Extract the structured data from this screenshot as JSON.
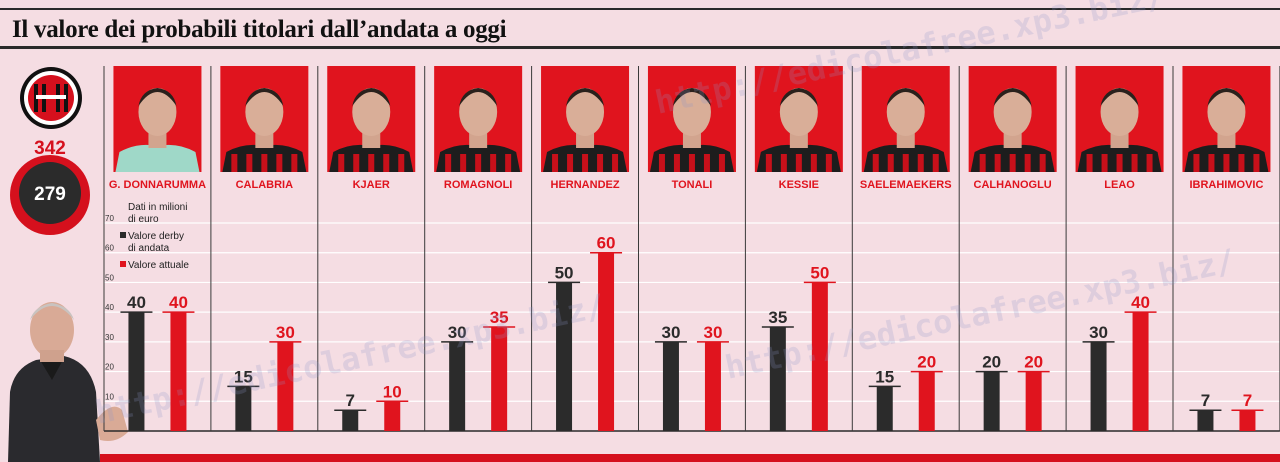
{
  "title": "Il valore dei probabili titolari dall’andata a oggi",
  "team": {
    "logo_icon": "ac-milan-crest-icon",
    "total_now": "342",
    "total_derby": "279"
  },
  "legend": {
    "unit_note": "Dati in milioni di euro",
    "derby_label": "Valore derby di andata",
    "current_label": "Valore attuale"
  },
  "colors": {
    "derby": "#2b2b2b",
    "current": "#e0141e",
    "accent": "#d5101d",
    "background": "#f5dde3"
  },
  "chart_data": {
    "type": "bar",
    "title": "Il valore dei probabili titolari dall’andata a oggi",
    "ylim": [
      0,
      70
    ],
    "yticks": [
      10,
      20,
      30,
      40,
      50,
      60,
      70
    ],
    "categories": [
      "G. DONNARUMMA",
      "CALABRIA",
      "KJAER",
      "ROMAGNOLI",
      "HERNANDEZ",
      "TONALI",
      "KESSIE",
      "SAELEMAEKERS",
      "CALHANOGLU",
      "LEAO",
      "IBRAHIMOVIC"
    ],
    "series": [
      {
        "name": "Valore derby di andata",
        "values": [
          40,
          15,
          7,
          30,
          50,
          30,
          35,
          15,
          20,
          30,
          7
        ]
      },
      {
        "name": "Valore attuale",
        "values": [
          40,
          30,
          10,
          35,
          60,
          30,
          50,
          20,
          20,
          40,
          7
        ]
      }
    ]
  },
  "watermark": "http://edicolafree.xp3.biz/"
}
